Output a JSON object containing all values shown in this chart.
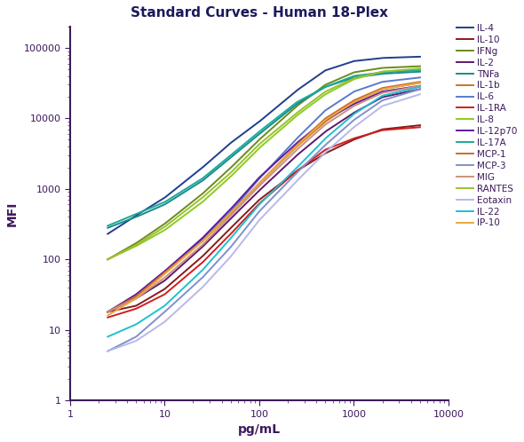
{
  "title": "Standard Curves - Human 18-Plex",
  "xlabel": "pg/mL",
  "ylabel": "MFI",
  "xlim": [
    1,
    10000
  ],
  "ylim": [
    1,
    200000
  ],
  "spine_color": "#3d1a5c",
  "tick_color": "#3d1a5c",
  "label_color": "#3d1a5c",
  "title_color": "#1a1a5c",
  "series": [
    {
      "name": "IL-4",
      "color": "#1f3e8c",
      "x": [
        2.5,
        5,
        10,
        25,
        50,
        100,
        250,
        500,
        1000,
        2000,
        5000
      ],
      "y": [
        230,
        420,
        750,
        2000,
        4500,
        9000,
        25000,
        48000,
        65000,
        72000,
        75000
      ]
    },
    {
      "name": "IL-10",
      "color": "#8b1a1a",
      "x": [
        2.5,
        5,
        10,
        25,
        50,
        100,
        250,
        500,
        1000,
        2000,
        5000
      ],
      "y": [
        18,
        22,
        38,
        110,
        280,
        700,
        1800,
        3200,
        5000,
        7000,
        8000
      ]
    },
    {
      "name": "IFNg",
      "color": "#6a8c1a",
      "x": [
        2.5,
        5,
        10,
        25,
        50,
        100,
        250,
        500,
        1000,
        2000,
        5000
      ],
      "y": [
        100,
        170,
        320,
        850,
        2000,
        5000,
        15000,
        30000,
        45000,
        52000,
        55000
      ]
    },
    {
      "name": "IL-2",
      "color": "#5c1a6e",
      "x": [
        2.5,
        5,
        10,
        25,
        50,
        100,
        250,
        500,
        1000,
        2000,
        5000
      ],
      "y": [
        18,
        28,
        50,
        150,
        380,
        950,
        3000,
        6500,
        12000,
        20000,
        26000
      ]
    },
    {
      "name": "TNFa",
      "color": "#1a8a8a",
      "x": [
        2.5,
        5,
        10,
        25,
        50,
        100,
        250,
        500,
        1000,
        2000,
        5000
      ],
      "y": [
        280,
        400,
        600,
        1300,
        2800,
        6000,
        16000,
        28000,
        38000,
        43000,
        46000
      ]
    },
    {
      "name": "IL-1b",
      "color": "#c87820",
      "x": [
        2.5,
        5,
        10,
        25,
        50,
        100,
        250,
        500,
        1000,
        2000,
        5000
      ],
      "y": [
        18,
        30,
        65,
        180,
        460,
        1200,
        4000,
        9000,
        17000,
        26000,
        32000
      ]
    },
    {
      "name": "IL-6",
      "color": "#5a7acc",
      "x": [
        2.5,
        5,
        10,
        25,
        50,
        100,
        250,
        500,
        1000,
        2000,
        5000
      ],
      "y": [
        18,
        30,
        65,
        190,
        480,
        1400,
        5200,
        13000,
        24000,
        33000,
        38000
      ]
    },
    {
      "name": "IL-1RA",
      "color": "#cc2020",
      "x": [
        2.5,
        5,
        10,
        25,
        50,
        100,
        250,
        500,
        1000,
        2000,
        5000
      ],
      "y": [
        15,
        20,
        32,
        90,
        230,
        620,
        1800,
        3600,
        5200,
        6800,
        7500
      ]
    },
    {
      "name": "IL-8",
      "color": "#8acc20",
      "x": [
        2.5,
        5,
        10,
        25,
        50,
        100,
        250,
        500,
        1000,
        2000,
        5000
      ],
      "y": [
        100,
        155,
        260,
        650,
        1500,
        3800,
        11000,
        22000,
        36000,
        46000,
        50000
      ]
    },
    {
      "name": "IL-12p70",
      "color": "#5c1a9e",
      "x": [
        2.5,
        5,
        10,
        25,
        50,
        100,
        250,
        500,
        1000,
        2000,
        5000
      ],
      "y": [
        18,
        32,
        68,
        200,
        520,
        1450,
        4500,
        9500,
        16000,
        24000,
        29000
      ]
    },
    {
      "name": "IL-17A",
      "color": "#1aaa9a",
      "x": [
        2.5,
        5,
        10,
        25,
        50,
        100,
        250,
        500,
        1000,
        2000,
        5000
      ],
      "y": [
        300,
        440,
        650,
        1400,
        3000,
        6500,
        17000,
        28000,
        40000,
        45000,
        48000
      ]
    },
    {
      "name": "MCP-1",
      "color": "#d06830",
      "x": [
        2.5,
        5,
        10,
        25,
        50,
        100,
        250,
        500,
        1000,
        2000,
        5000
      ],
      "y": [
        18,
        30,
        65,
        180,
        450,
        1200,
        4200,
        10000,
        18000,
        27000,
        33000
      ]
    },
    {
      "name": "MCP-3",
      "color": "#8090cc",
      "x": [
        2.5,
        5,
        10,
        25,
        50,
        100,
        250,
        500,
        1000,
        2000,
        5000
      ],
      "y": [
        5,
        8,
        18,
        55,
        150,
        480,
        1700,
        4200,
        9500,
        18000,
        26000
      ]
    },
    {
      "name": "MIG",
      "color": "#cc9080",
      "x": [
        2.5,
        5,
        10,
        25,
        50,
        100,
        250,
        500,
        1000,
        2000,
        5000
      ],
      "y": [
        18,
        28,
        55,
        160,
        420,
        1100,
        3600,
        8200,
        15000,
        23000,
        29000
      ]
    },
    {
      "name": "RANTES",
      "color": "#9cc030",
      "x": [
        2.5,
        5,
        10,
        25,
        50,
        100,
        250,
        500,
        1000,
        2000,
        5000
      ],
      "y": [
        100,
        160,
        290,
        750,
        1700,
        4300,
        12000,
        24000,
        37000,
        46000,
        51000
      ]
    },
    {
      "name": "Eotaxin",
      "color": "#b8b8e8",
      "x": [
        2.5,
        5,
        10,
        25,
        50,
        100,
        250,
        500,
        1000,
        2000,
        5000
      ],
      "y": [
        5,
        7,
        13,
        40,
        110,
        360,
        1300,
        3300,
        7500,
        15000,
        22000
      ]
    },
    {
      "name": "IL-22",
      "color": "#20c0d0",
      "x": [
        2.5,
        5,
        10,
        25,
        50,
        100,
        250,
        500,
        1000,
        2000,
        5000
      ],
      "y": [
        8,
        12,
        22,
        70,
        200,
        600,
        2000,
        5200,
        11500,
        21000,
        28000
      ]
    },
    {
      "name": "IP-10",
      "color": "#e8a840",
      "x": [
        2.5,
        5,
        10,
        25,
        50,
        100,
        250,
        500,
        1000,
        2000,
        5000
      ],
      "y": [
        16,
        28,
        62,
        180,
        460,
        1200,
        4100,
        9500,
        17000,
        26000,
        32000
      ]
    }
  ]
}
